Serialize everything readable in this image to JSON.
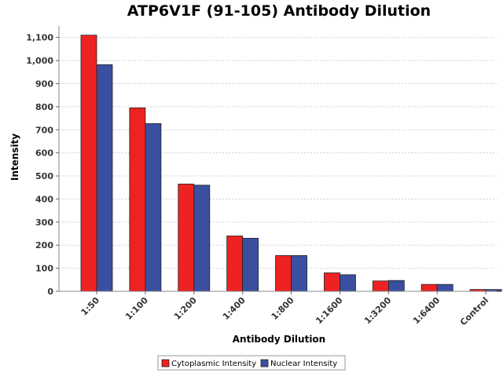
{
  "chart_data": {
    "type": "bar",
    "title": "ATP6V1F (91-105) Antibody Dilution",
    "xlabel": "Antibody Dilution",
    "ylabel": "Intensity",
    "ylim": [
      0,
      1150
    ],
    "yticks": [
      0,
      100,
      200,
      300,
      400,
      500,
      600,
      700,
      800,
      900,
      1000,
      1100
    ],
    "ytick_labels": [
      "0",
      "100",
      "200",
      "300",
      "400",
      "500",
      "600",
      "700",
      "800",
      "900",
      "1,000",
      "1,100"
    ],
    "grid": true,
    "legend_position": "bottom",
    "categories": [
      "1:50",
      "1:100",
      "1:200",
      "1:400",
      "1:800",
      "1:1600",
      "1:3200",
      "1:6400",
      "Control"
    ],
    "series": [
      {
        "name": "Cytoplasmic Intensity",
        "color": "#ee2222",
        "values": [
          1110,
          795,
          465,
          240,
          155,
          80,
          45,
          30,
          8
        ]
      },
      {
        "name": "Nuclear Intensity",
        "color": "#3a4fa0",
        "values": [
          982,
          727,
          460,
          230,
          155,
          72,
          47,
          30,
          8
        ]
      }
    ]
  }
}
